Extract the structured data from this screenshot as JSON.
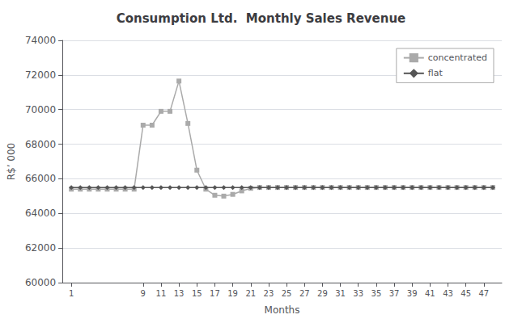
{
  "chart_data": {
    "type": "line",
    "title": "Consumption Ltd.  Monthly Sales Revenue",
    "xlabel": "Months",
    "ylabel": "R$’ 000",
    "xlim": [
      0,
      49
    ],
    "ylim": [
      60000,
      74000
    ],
    "xticks": [
      1,
      9,
      11,
      13,
      15,
      17,
      19,
      21,
      23,
      25,
      27,
      29,
      31,
      33,
      35,
      37,
      39,
      41,
      43,
      45,
      47
    ],
    "yticks": [
      60000,
      62000,
      64000,
      66000,
      68000,
      70000,
      72000,
      74000
    ],
    "grid": true,
    "legend": "upper right",
    "x": [
      1,
      2,
      3,
      4,
      5,
      6,
      7,
      8,
      9,
      10,
      11,
      12,
      13,
      14,
      15,
      16,
      17,
      18,
      19,
      20,
      21,
      22,
      23,
      24,
      25,
      26,
      27,
      28,
      29,
      30,
      31,
      32,
      33,
      34,
      35,
      36,
      37,
      38,
      39,
      40,
      41,
      42,
      43,
      44,
      45,
      46,
      47,
      48
    ],
    "series": [
      {
        "name": "concentrated",
        "color": "#aaaaaa",
        "marker": "square",
        "values": [
          65400,
          65400,
          65400,
          65400,
          65400,
          65400,
          65400,
          65400,
          69100,
          69100,
          69900,
          69900,
          71650,
          69200,
          66500,
          65400,
          65050,
          65000,
          65100,
          65300,
          65450,
          65500,
          65500,
          65500,
          65500,
          65500,
          65500,
          65500,
          65500,
          65500,
          65500,
          65500,
          65500,
          65500,
          65500,
          65500,
          65500,
          65500,
          65500,
          65500,
          65500,
          65500,
          65500,
          65500,
          65500,
          65500,
          65500,
          65500
        ]
      },
      {
        "name": "flat",
        "color": "#555555",
        "marker": "diamond",
        "values": [
          65500,
          65500,
          65500,
          65500,
          65500,
          65500,
          65500,
          65500,
          65500,
          65500,
          65500,
          65500,
          65500,
          65500,
          65500,
          65500,
          65500,
          65500,
          65500,
          65500,
          65500,
          65500,
          65500,
          65500,
          65500,
          65500,
          65500,
          65500,
          65500,
          65500,
          65500,
          65500,
          65500,
          65500,
          65500,
          65500,
          65500,
          65500,
          65500,
          65500,
          65500,
          65500,
          65500,
          65500,
          65500,
          65500,
          65500,
          65500
        ]
      }
    ]
  }
}
